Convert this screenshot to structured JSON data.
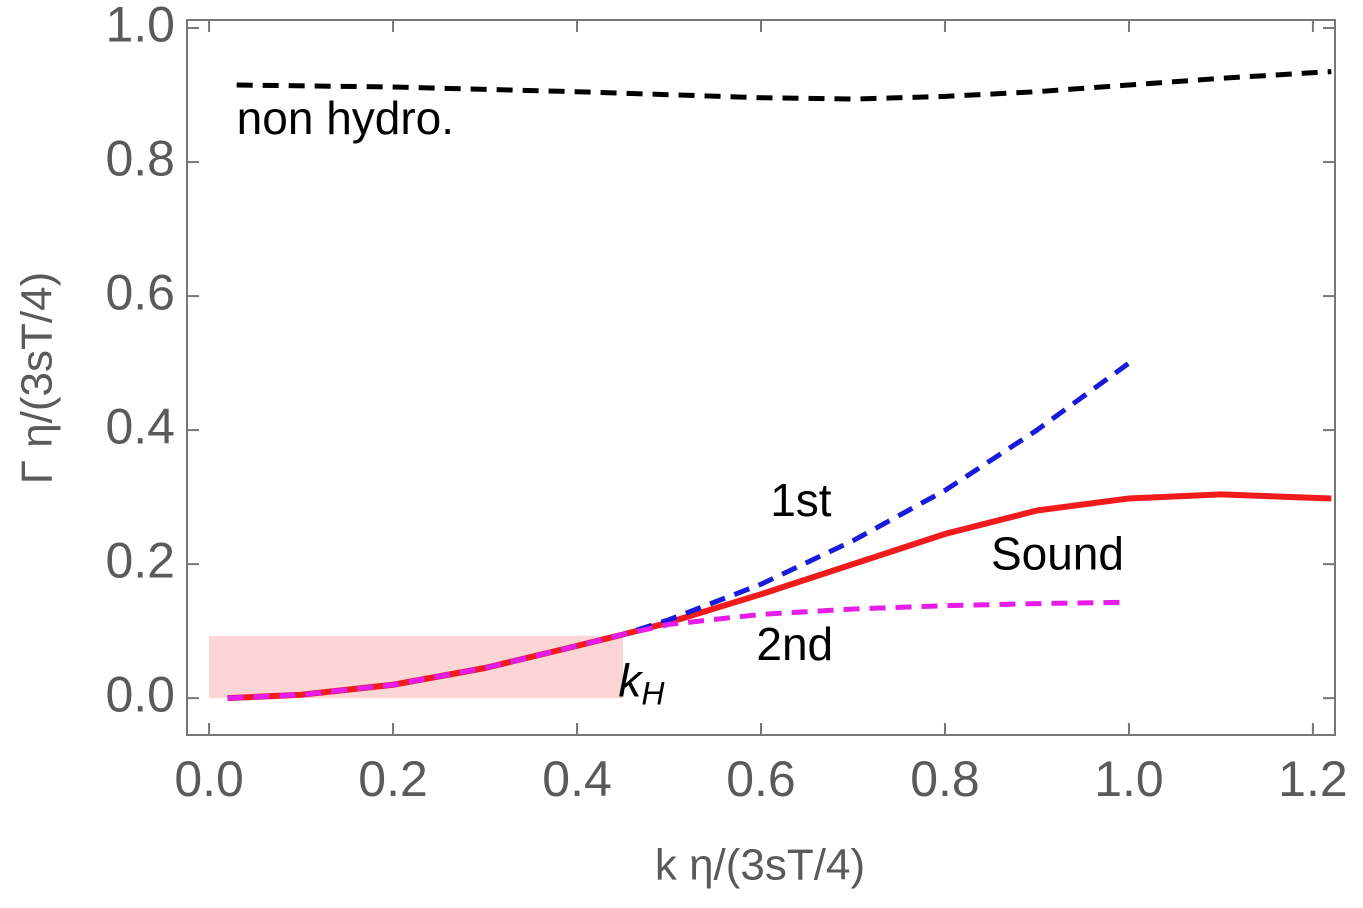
{
  "chart_data": {
    "type": "line",
    "xlabel": "k η/(3sT/4)",
    "ylabel": "Γ η/(3sT/4)",
    "xlim": [
      -0.024,
      1.224
    ],
    "ylim": [
      -0.055,
      1.012
    ],
    "xticks": [
      {
        "value": 0,
        "label": "0.0"
      },
      0.2,
      0.4,
      0.6,
      0.8,
      {
        "value": 1,
        "label": "1.0"
      },
      1.2
    ],
    "yticks": [
      {
        "value": 0,
        "label": "0.0"
      },
      0.2,
      0.4,
      0.6,
      0.8,
      {
        "value": 1,
        "label": "1.0"
      }
    ],
    "shade": {
      "color": "#fdd5d5",
      "x": [
        0,
        0.45
      ],
      "y": [
        0,
        0.093
      ]
    },
    "series": [
      {
        "name": "non hydro.",
        "color": "#000000",
        "dashed": true,
        "x": [
          0.03,
          0.2,
          0.4,
          0.6,
          0.7,
          0.8,
          0.9,
          1.0,
          1.1,
          1.22
        ],
        "values": [
          0.915,
          0.912,
          0.905,
          0.896,
          0.894,
          0.898,
          0.905,
          0.915,
          0.925,
          0.935
        ]
      },
      {
        "name": "1st",
        "color": "#1a1adc",
        "dashed": true,
        "x": [
          0.02,
          0.1,
          0.2,
          0.3,
          0.4,
          0.45,
          0.5,
          0.6,
          0.7,
          0.8,
          0.9,
          1.0
        ],
        "values": [
          0,
          0.005,
          0.02,
          0.045,
          0.078,
          0.095,
          0.117,
          0.17,
          0.235,
          0.31,
          0.4,
          0.5
        ]
      },
      {
        "name": "Sound",
        "color": "#f21b1b",
        "dashed": false,
        "x": [
          0.02,
          0.1,
          0.2,
          0.3,
          0.4,
          0.45,
          0.5,
          0.6,
          0.7,
          0.8,
          0.9,
          1.0,
          1.1,
          1.22
        ],
        "values": [
          0,
          0.005,
          0.02,
          0.045,
          0.078,
          0.095,
          0.113,
          0.155,
          0.2,
          0.245,
          0.28,
          0.298,
          0.304,
          0.298
        ]
      },
      {
        "name": "2nd",
        "color": "#e81ce8",
        "dashed": true,
        "x": [
          0.02,
          0.1,
          0.2,
          0.3,
          0.4,
          0.45,
          0.5,
          0.6,
          0.7,
          0.8,
          0.9,
          0.99
        ],
        "values": [
          0,
          0.005,
          0.02,
          0.045,
          0.078,
          0.095,
          0.11,
          0.125,
          0.133,
          0.138,
          0.141,
          0.143
        ]
      }
    ],
    "annotations": [
      {
        "text": "non hydro.",
        "x": 0.03,
        "y": 0.86
      },
      {
        "text": "1st",
        "x": 0.61,
        "y": 0.29
      },
      {
        "text": "Sound",
        "x": 0.85,
        "y": 0.21
      },
      {
        "text": "2nd",
        "x": 0.595,
        "y": 0.075
      }
    ],
    "marker_label": {
      "text": "k",
      "sub": "H",
      "x": 0.445,
      "y": 0.02
    }
  }
}
